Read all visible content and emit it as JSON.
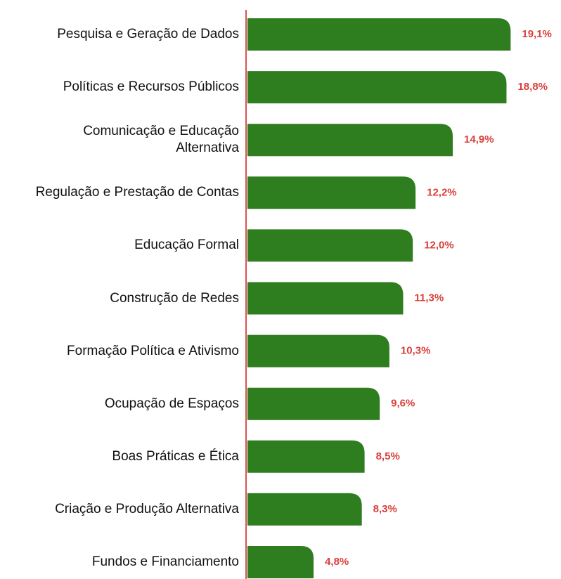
{
  "chart_data": {
    "type": "bar",
    "orientation": "horizontal",
    "categories": [
      "Pesquisa e Geração de Dados",
      "Políticas e Recursos Públicos",
      "Comunicação e Educação\nAlternativa",
      "Regulação e Prestação de Contas",
      "Educação Formal",
      "Construção de Redes",
      "Formação Política e Ativismo",
      "Ocupação de Espaços",
      "Boas Práticas e Ética",
      "Criação e Produção Alternativa",
      "Fundos e Financiamento"
    ],
    "values": [
      19.1,
      18.8,
      14.9,
      12.2,
      12.0,
      11.3,
      10.3,
      9.6,
      8.5,
      8.3,
      4.8
    ],
    "value_labels": [
      "19,1%",
      "18,8%",
      "14,9%",
      "12,2%",
      "12,0%",
      "11,3%",
      "10,3%",
      "9,6%",
      "8,5%",
      "8,3%",
      "4,8%"
    ],
    "color": "#2e7d1f",
    "axis_color": "#e05050",
    "label_color": "#d9403a"
  }
}
